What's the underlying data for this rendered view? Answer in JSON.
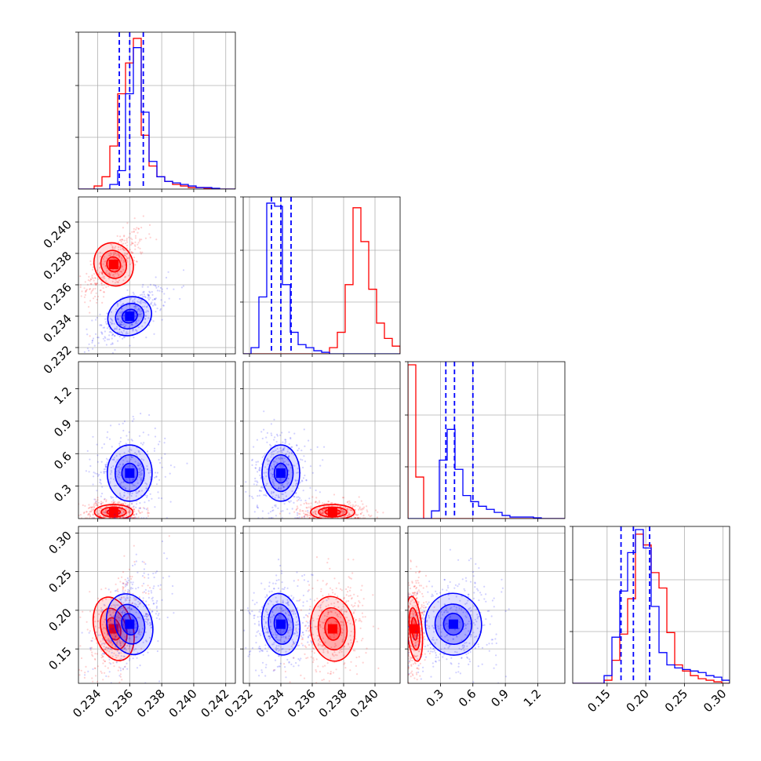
{
  "chart_data": {
    "type": "corner",
    "colors": {
      "red": "#ff0000",
      "blue": "#0000ff"
    },
    "grid": true,
    "dims": [
      {
        "range": [
          0.2328,
          0.2426
        ],
        "ticks": [
          {
            "v": 0.234,
            "label": "0.234"
          },
          {
            "v": 0.236,
            "label": "0.236"
          },
          {
            "v": 0.238,
            "label": "0.238"
          },
          {
            "v": 0.24,
            "label": "0.240"
          },
          {
            "v": 0.242,
            "label": "0.242"
          }
        ]
      },
      {
        "range": [
          0.2316,
          0.2416
        ],
        "ticks": [
          {
            "v": 0.232,
            "label": "0.232"
          },
          {
            "v": 0.234,
            "label": "0.234"
          },
          {
            "v": 0.236,
            "label": "0.236"
          },
          {
            "v": 0.238,
            "label": "0.238"
          },
          {
            "v": 0.24,
            "label": "0.240"
          }
        ]
      },
      {
        "range": [
          0.0,
          1.45
        ],
        "ticks": [
          {
            "v": 0.3,
            "label": "0.3"
          },
          {
            "v": 0.6,
            "label": "0.6"
          },
          {
            "v": 0.9,
            "label": "0.9"
          },
          {
            "v": 1.2,
            "label": "1.2"
          }
        ]
      },
      {
        "range": [
          0.1055,
          0.3085
        ],
        "ticks": [
          {
            "v": 0.15,
            "label": "0.15"
          },
          {
            "v": 0.2,
            "label": "0.20"
          },
          {
            "v": 0.25,
            "label": "0.25"
          },
          {
            "v": 0.3,
            "label": "0.30"
          }
        ]
      }
    ],
    "series": [
      {
        "color": "red",
        "means": [
          0.235,
          0.2373,
          0.06,
          0.176
        ],
        "sds": [
          0.0006,
          0.0007,
          0.035,
          0.021
        ],
        "hist": [
          [
            0,
            0,
            0.02,
            0.08,
            0.28,
            0.62,
            0.82,
            0.98,
            0.35,
            0.15,
            0.08,
            0.05,
            0.03,
            0.02,
            0.01,
            0.01,
            0.005,
            0,
            0,
            0
          ],
          [
            0,
            0,
            0,
            0,
            0,
            0,
            0,
            0,
            0,
            0,
            0,
            0.04,
            0.14,
            0.45,
            0.95,
            0.73,
            0.42,
            0.2,
            0.1,
            0.05
          ],
          [
            1.0,
            0.27,
            0,
            0,
            0,
            0,
            0,
            0,
            0,
            0,
            0,
            0,
            0,
            0,
            0,
            0,
            0,
            0,
            0,
            0
          ],
          [
            0,
            0,
            0,
            0,
            0.02,
            0.15,
            0.32,
            0.55,
            0.97,
            0.9,
            0.72,
            0.62,
            0.33,
            0.12,
            0.08,
            0.05,
            0.03,
            0.02,
            0.01,
            0
          ]
        ]
      },
      {
        "color": "blue",
        "means": [
          0.236,
          0.234,
          0.42,
          0.182
        ],
        "sds": [
          0.0007,
          0.0006,
          0.13,
          0.02
        ],
        "hist": [
          [
            0,
            0,
            0,
            0,
            0.03,
            0.12,
            0.62,
            0.92,
            0.5,
            0.18,
            0.08,
            0.05,
            0.04,
            0.03,
            0.02,
            0.01,
            0.01,
            0.005,
            0,
            0
          ],
          [
            0,
            0.04,
            0.37,
            0.98,
            0.96,
            0.45,
            0.14,
            0.06,
            0.04,
            0.02,
            0.01,
            0,
            0,
            0,
            0,
            0,
            0,
            0,
            0,
            0
          ],
          [
            0,
            0,
            0,
            0.05,
            0.38,
            0.58,
            0.32,
            0.15,
            0.11,
            0.08,
            0.06,
            0.04,
            0.02,
            0.01,
            0.01,
            0.01,
            0.005,
            0,
            0,
            0
          ],
          [
            0,
            0,
            0,
            0,
            0.05,
            0.3,
            0.6,
            0.85,
            1.0,
            0.88,
            0.5,
            0.2,
            0.12,
            0.1,
            0.09,
            0.08,
            0.07,
            0.05,
            0.04,
            0.02
          ]
        ]
      }
    ],
    "quantiles": [
      [
        0.23535,
        0.236,
        0.23685
      ],
      [
        0.2334,
        0.234,
        0.23465
      ],
      [
        0.35,
        0.43,
        0.6
      ],
      [
        0.168,
        0.184,
        0.205
      ]
    ]
  }
}
